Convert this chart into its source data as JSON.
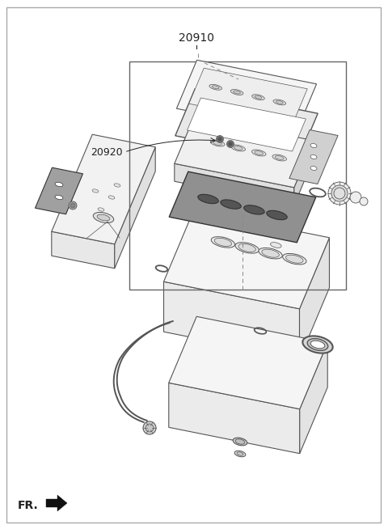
{
  "title": "20910",
  "label_20920": "20920",
  "label_fr": "FR.",
  "bg_color": "#ffffff",
  "line_color": "#555555",
  "thin_line": "#777777",
  "dark_fill": "#888888",
  "light_fill": "#f0f0f0",
  "text_color": "#222222",
  "fig_width": 4.8,
  "fig_height": 6.54,
  "dpi": 100
}
